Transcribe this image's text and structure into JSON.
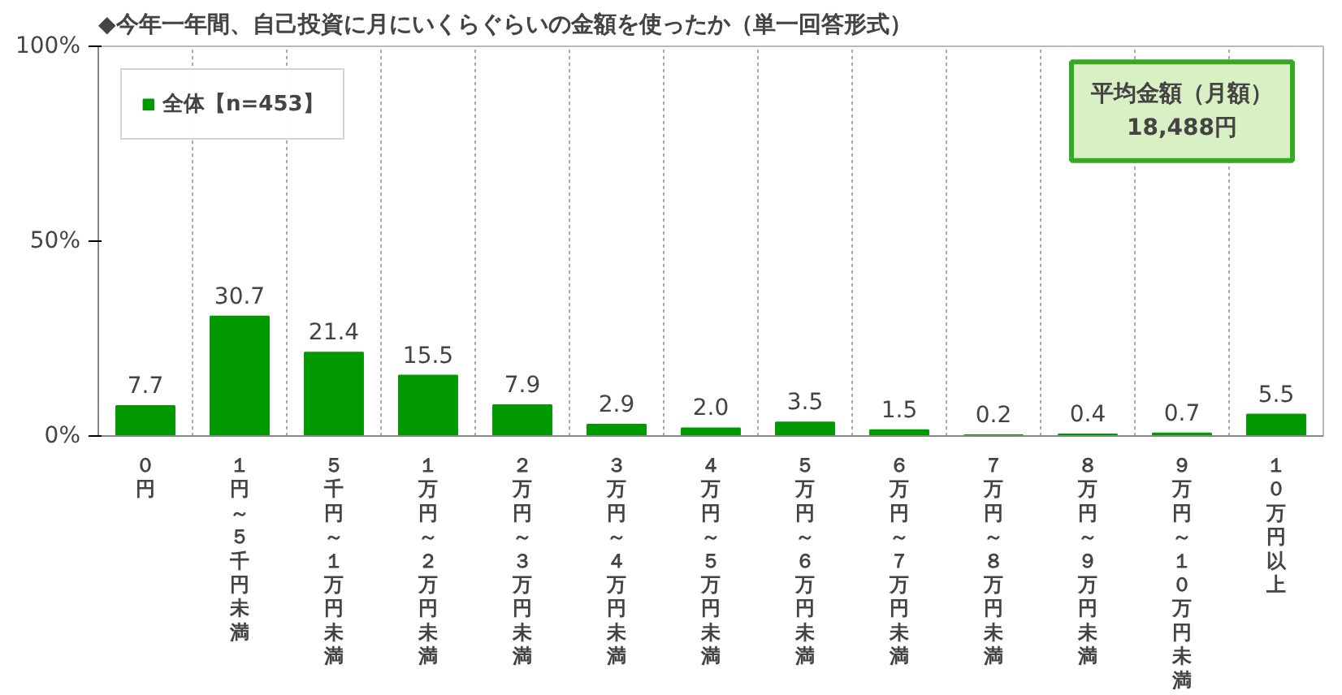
{
  "chart_data": {
    "type": "bar",
    "title": "◆今年一年間、自己投資に月にいくらぐらいの金額を使ったか（単一回答形式）",
    "categories": [
      "０円",
      "１円～５千円未満",
      "５千円～１万円未満",
      "１万円～２万円未満",
      "２万円～３万円未満",
      "３万円～４万円未満",
      "４万円～５万円未満",
      "５万円～６万円未満",
      "６万円～７万円未満",
      "７万円～８万円未満",
      "８万円～９万円未満",
      "９万円～１０万円未満",
      "１０万円以上"
    ],
    "series": [
      {
        "name": "全体【n=453】",
        "color": "#009900",
        "values": [
          7.7,
          30.7,
          21.4,
          15.5,
          7.9,
          2.9,
          2.0,
          3.5,
          1.5,
          0.2,
          0.4,
          0.7,
          5.5
        ]
      }
    ],
    "ylim": [
      0,
      100
    ],
    "yticks": [
      {
        "value": 0,
        "label": "0%"
      },
      {
        "value": 50,
        "label": "50%"
      },
      {
        "value": 100,
        "label": "100%"
      }
    ],
    "value_labels": [
      "7.7",
      "30.7",
      "21.4",
      "15.5",
      "7.9",
      "2.9",
      "2.0",
      "3.5",
      "1.5",
      "0.2",
      "0.4",
      "0.7",
      "5.5"
    ],
    "legend": "top left",
    "grid": "x",
    "annotations": [
      "平均金額（月額）\n18,488円"
    ]
  }
}
